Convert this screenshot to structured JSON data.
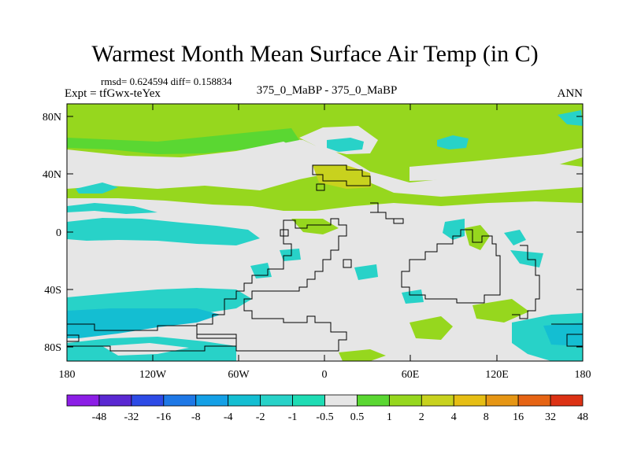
{
  "title": "Warmest Month Mean Surface Air Temp (in C)",
  "stats_line": "rmsd= 0.624594 diff= 0.158834",
  "expt_label": "Expt = tfGwx-teYex",
  "center_label": "375_0_MaBP - 375_0_MaBP",
  "period_label": "ANN",
  "lat_ticks": [
    "80N",
    "40N",
    "0",
    "40S",
    "80S"
  ],
  "lon_ticks": [
    "180",
    "120W",
    "60W",
    "0",
    "60E",
    "120E",
    "180"
  ],
  "colorbar": {
    "labels": [
      "-48",
      "-32",
      "-16",
      "-8",
      "-4",
      "-2",
      "-1",
      "-0.5",
      "0.5",
      "1",
      "2",
      "4",
      "8",
      "16",
      "32",
      "48"
    ],
    "colors": [
      "#8c1ee6",
      "#5a28d2",
      "#2d4be6",
      "#1e78e6",
      "#14a0e6",
      "#14bed2",
      "#28d2c8",
      "#1edcb4",
      "#e6e6e6",
      "#5ad732",
      "#96d71e",
      "#c8d21e",
      "#e6be14",
      "#e69614",
      "#e66414",
      "#dc3214"
    ]
  },
  "legend_colors": {
    "white_band": "#e6e6e6",
    "cyan": "#28d2c8",
    "light_green": "#96d71e",
    "green": "#5ad732",
    "olive": "#c8d21e",
    "blue": "#14bed2"
  }
}
